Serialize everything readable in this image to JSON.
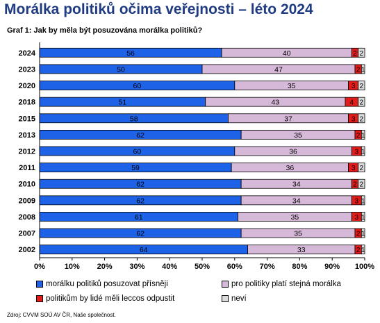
{
  "title": "Morálka politiků očima veřejnosti – léto 2024",
  "subtitle": "Graf 1: Jak by měla být posuzována morálka politiků?",
  "source": "Zdroj: CVVM SOÚ AV ČR, Naše společnost.",
  "colors": {
    "title": "#1f3b82",
    "series": [
      "#1e62e8",
      "#d6b8d8",
      "#e21b1b",
      "#dcdcdc"
    ]
  },
  "chart_data": {
    "type": "bar",
    "orientation": "horizontal",
    "stacked": "percent",
    "categories": [
      "2024",
      "2023",
      "2020",
      "2018",
      "2015",
      "2013",
      "2012",
      "2011",
      "2010",
      "2009",
      "2008",
      "2007",
      "2002"
    ],
    "series": [
      {
        "name": "morálku politiků posuzovat přísněji",
        "values": [
          56,
          50,
          60,
          51,
          58,
          62,
          60,
          59,
          62,
          62,
          61,
          62,
          64
        ]
      },
      {
        "name": "pro politiky platí stejná morálka",
        "values": [
          40,
          47,
          35,
          43,
          37,
          35,
          36,
          36,
          34,
          34,
          35,
          35,
          33
        ]
      },
      {
        "name": "politikům by lidé měli leccos odpustit",
        "values": [
          2,
          2,
          3,
          4,
          3,
          2,
          3,
          3,
          2,
          3,
          3,
          2,
          2
        ]
      },
      {
        "name": "neví",
        "values": [
          2,
          1,
          2,
          2,
          2,
          1,
          1,
          2,
          2,
          1,
          1,
          1,
          1
        ]
      }
    ],
    "xlim": [
      0,
      100
    ],
    "xticks": [
      "0%",
      "10%",
      "20%",
      "30%",
      "40%",
      "50%",
      "60%",
      "70%",
      "80%",
      "90%",
      "100%"
    ],
    "legend_position": "bottom",
    "grid": false
  }
}
